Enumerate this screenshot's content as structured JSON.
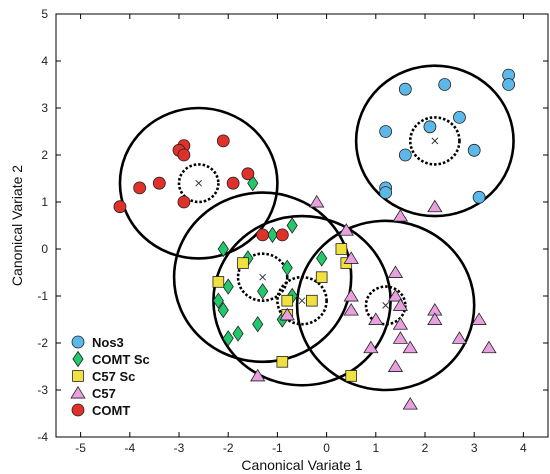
{
  "chart_data": {
    "type": "scatter",
    "title": "",
    "xlabel": "Canonical Variate 1",
    "ylabel": "Canonical Variate 2",
    "xlim": [
      -5.5,
      4.5
    ],
    "ylim": [
      -4,
      5
    ],
    "xticks": [
      -5,
      -4,
      -3,
      -2,
      -1,
      0,
      1,
      2,
      3,
      4
    ],
    "yticks": [
      -4,
      -3,
      -2,
      -1,
      0,
      1,
      2,
      3,
      4,
      5
    ],
    "grid": false,
    "legend_position": "bottom-left",
    "series": [
      {
        "name": "Nos3",
        "marker": "circle",
        "color": "#5cb8e8",
        "centroid": [
          2.2,
          2.3
        ],
        "outer_radius": 1.6,
        "inner_radius": 0.5,
        "points": [
          [
            1.6,
            3.4
          ],
          [
            2.4,
            3.5
          ],
          [
            3.7,
            3.7
          ],
          [
            3.7,
            3.5
          ],
          [
            2.7,
            2.8
          ],
          [
            1.2,
            2.5
          ],
          [
            2.1,
            2.6
          ],
          [
            3.0,
            2.1
          ],
          [
            1.6,
            2.0
          ],
          [
            1.2,
            1.3
          ],
          [
            1.2,
            1.2
          ],
          [
            3.1,
            1.1
          ]
        ]
      },
      {
        "name": "COMT Sc",
        "marker": "diamond",
        "color": "#22c96a",
        "centroid": [
          -1.3,
          -0.6
        ],
        "outer_radius": 1.8,
        "inner_radius": 0.5,
        "points": [
          [
            -1.5,
            1.4
          ],
          [
            -0.7,
            0.5
          ],
          [
            -1.1,
            0.3
          ],
          [
            -2.1,
            0.0
          ],
          [
            -1.6,
            -0.2
          ],
          [
            -0.8,
            -0.4
          ],
          [
            -0.1,
            -0.2
          ],
          [
            -2.0,
            -0.8
          ],
          [
            -1.3,
            -0.9
          ],
          [
            -2.2,
            -1.1
          ],
          [
            -0.7,
            -1.0
          ],
          [
            -2.1,
            -1.3
          ],
          [
            -2.0,
            -1.9
          ],
          [
            -1.8,
            -1.8
          ],
          [
            -1.4,
            -1.6
          ],
          [
            -0.9,
            -1.5
          ]
        ]
      },
      {
        "name": "C57 Sc",
        "marker": "square",
        "color": "#f0e040",
        "centroid": [
          -0.5,
          -1.1
        ],
        "outer_radius": 1.8,
        "inner_radius": 0.5,
        "points": [
          [
            -1.7,
            -0.3
          ],
          [
            0.3,
            0.0
          ],
          [
            0.4,
            -0.3
          ],
          [
            -0.1,
            -0.6
          ],
          [
            -0.3,
            -1.1
          ],
          [
            -0.8,
            -1.1
          ],
          [
            -2.2,
            -0.7
          ],
          [
            -0.8,
            -1.4
          ],
          [
            -0.9,
            -2.4
          ],
          [
            0.5,
            -2.7
          ]
        ]
      },
      {
        "name": "C57",
        "marker": "triangle",
        "color": "#e8a0e0",
        "centroid": [
          1.2,
          -1.2
        ],
        "outer_radius": 1.8,
        "inner_radius": 0.4,
        "points": [
          [
            -0.2,
            1.0
          ],
          [
            1.5,
            0.7
          ],
          [
            2.2,
            0.9
          ],
          [
            0.4,
            0.4
          ],
          [
            0.5,
            -0.2
          ],
          [
            0.5,
            -1.0
          ],
          [
            1.4,
            -0.5
          ],
          [
            1.4,
            -1.0
          ],
          [
            1.5,
            -1.2
          ],
          [
            2.2,
            -1.3
          ],
          [
            0.5,
            -1.3
          ],
          [
            1.0,
            -1.5
          ],
          [
            -0.8,
            -1.4
          ],
          [
            1.5,
            -1.6
          ],
          [
            2.2,
            -1.5
          ],
          [
            1.5,
            -1.9
          ],
          [
            1.7,
            -2.1
          ],
          [
            2.7,
            -1.9
          ],
          [
            3.1,
            -1.5
          ],
          [
            3.3,
            -2.1
          ],
          [
            0.9,
            -2.1
          ],
          [
            1.4,
            -2.5
          ],
          [
            -1.4,
            -2.7
          ],
          [
            1.7,
            -3.3
          ]
        ]
      },
      {
        "name": "COMT",
        "marker": "circle",
        "color": "#e0302a",
        "centroid": [
          -2.6,
          1.4
        ],
        "outer_radius": 1.6,
        "inner_radius": 0.4,
        "points": [
          [
            -2.9,
            2.2
          ],
          [
            -3.0,
            2.1
          ],
          [
            -2.9,
            2.0
          ],
          [
            -2.1,
            2.3
          ],
          [
            -3.4,
            1.4
          ],
          [
            -3.8,
            1.3
          ],
          [
            -1.9,
            1.4
          ],
          [
            -1.6,
            1.6
          ],
          [
            -2.9,
            1.0
          ],
          [
            -4.2,
            0.9
          ],
          [
            -1.3,
            0.3
          ],
          [
            -0.9,
            0.3
          ]
        ]
      }
    ]
  }
}
